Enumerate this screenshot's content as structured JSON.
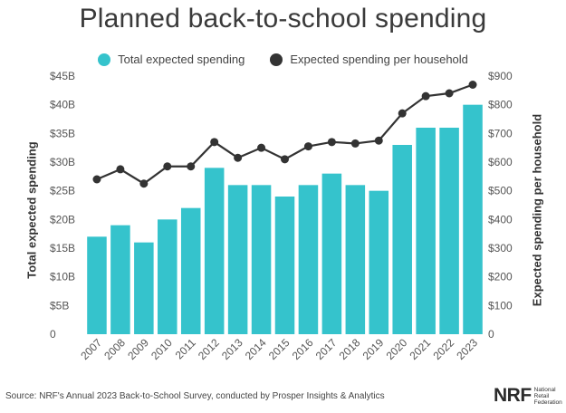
{
  "chart_data": {
    "type": "bar",
    "title": "Planned back-to-school spending",
    "categories": [
      "2007",
      "2008",
      "2009",
      "2010",
      "2011",
      "2012",
      "2013",
      "2014",
      "2015",
      "2016",
      "2017",
      "2018",
      "2019",
      "2020",
      "2021",
      "2022",
      "2023"
    ],
    "series": [
      {
        "name": "Total expected spending",
        "type": "bar",
        "axis": "left",
        "unit": "$B",
        "color": "#35c3cc",
        "values": [
          17.0,
          19.0,
          16.0,
          20.0,
          22.0,
          29.0,
          26.0,
          26.0,
          24.0,
          26.0,
          28.0,
          26.0,
          25.0,
          33.0,
          36.0,
          36.0,
          40.0
        ]
      },
      {
        "name": "Expected spending per household",
        "type": "line",
        "axis": "right",
        "unit": "$",
        "color": "#333333",
        "values": [
          540,
          575,
          525,
          585,
          585,
          670,
          615,
          650,
          610,
          655,
          670,
          665,
          675,
          770,
          830,
          840,
          870
        ]
      }
    ],
    "ylabel": "Total expected spending",
    "y2label": "Expected spending per household",
    "ylim": [
      0,
      45
    ],
    "y2lim": [
      0,
      900
    ],
    "yticks": [
      "0",
      "$5B",
      "$10B",
      "$15B",
      "$20B",
      "$25B",
      "$30B",
      "$35B",
      "$40B",
      "$45B"
    ],
    "y2ticks": [
      "0",
      "$100",
      "$200",
      "$300",
      "$400",
      "$500",
      "$600",
      "$700",
      "$800",
      "$900"
    ],
    "legend_placement": "top-center",
    "grid": false
  },
  "legend": {
    "bar_label": "Total expected spending",
    "line_label": "Expected spending per household"
  },
  "footer": {
    "source": "Source: NRF's Annual 2023 Back-to-School Survey, conducted by Prosper Insights & Analytics"
  },
  "logo": {
    "mark": "NRF",
    "words": [
      "National",
      "Retail",
      "Federation"
    ]
  }
}
